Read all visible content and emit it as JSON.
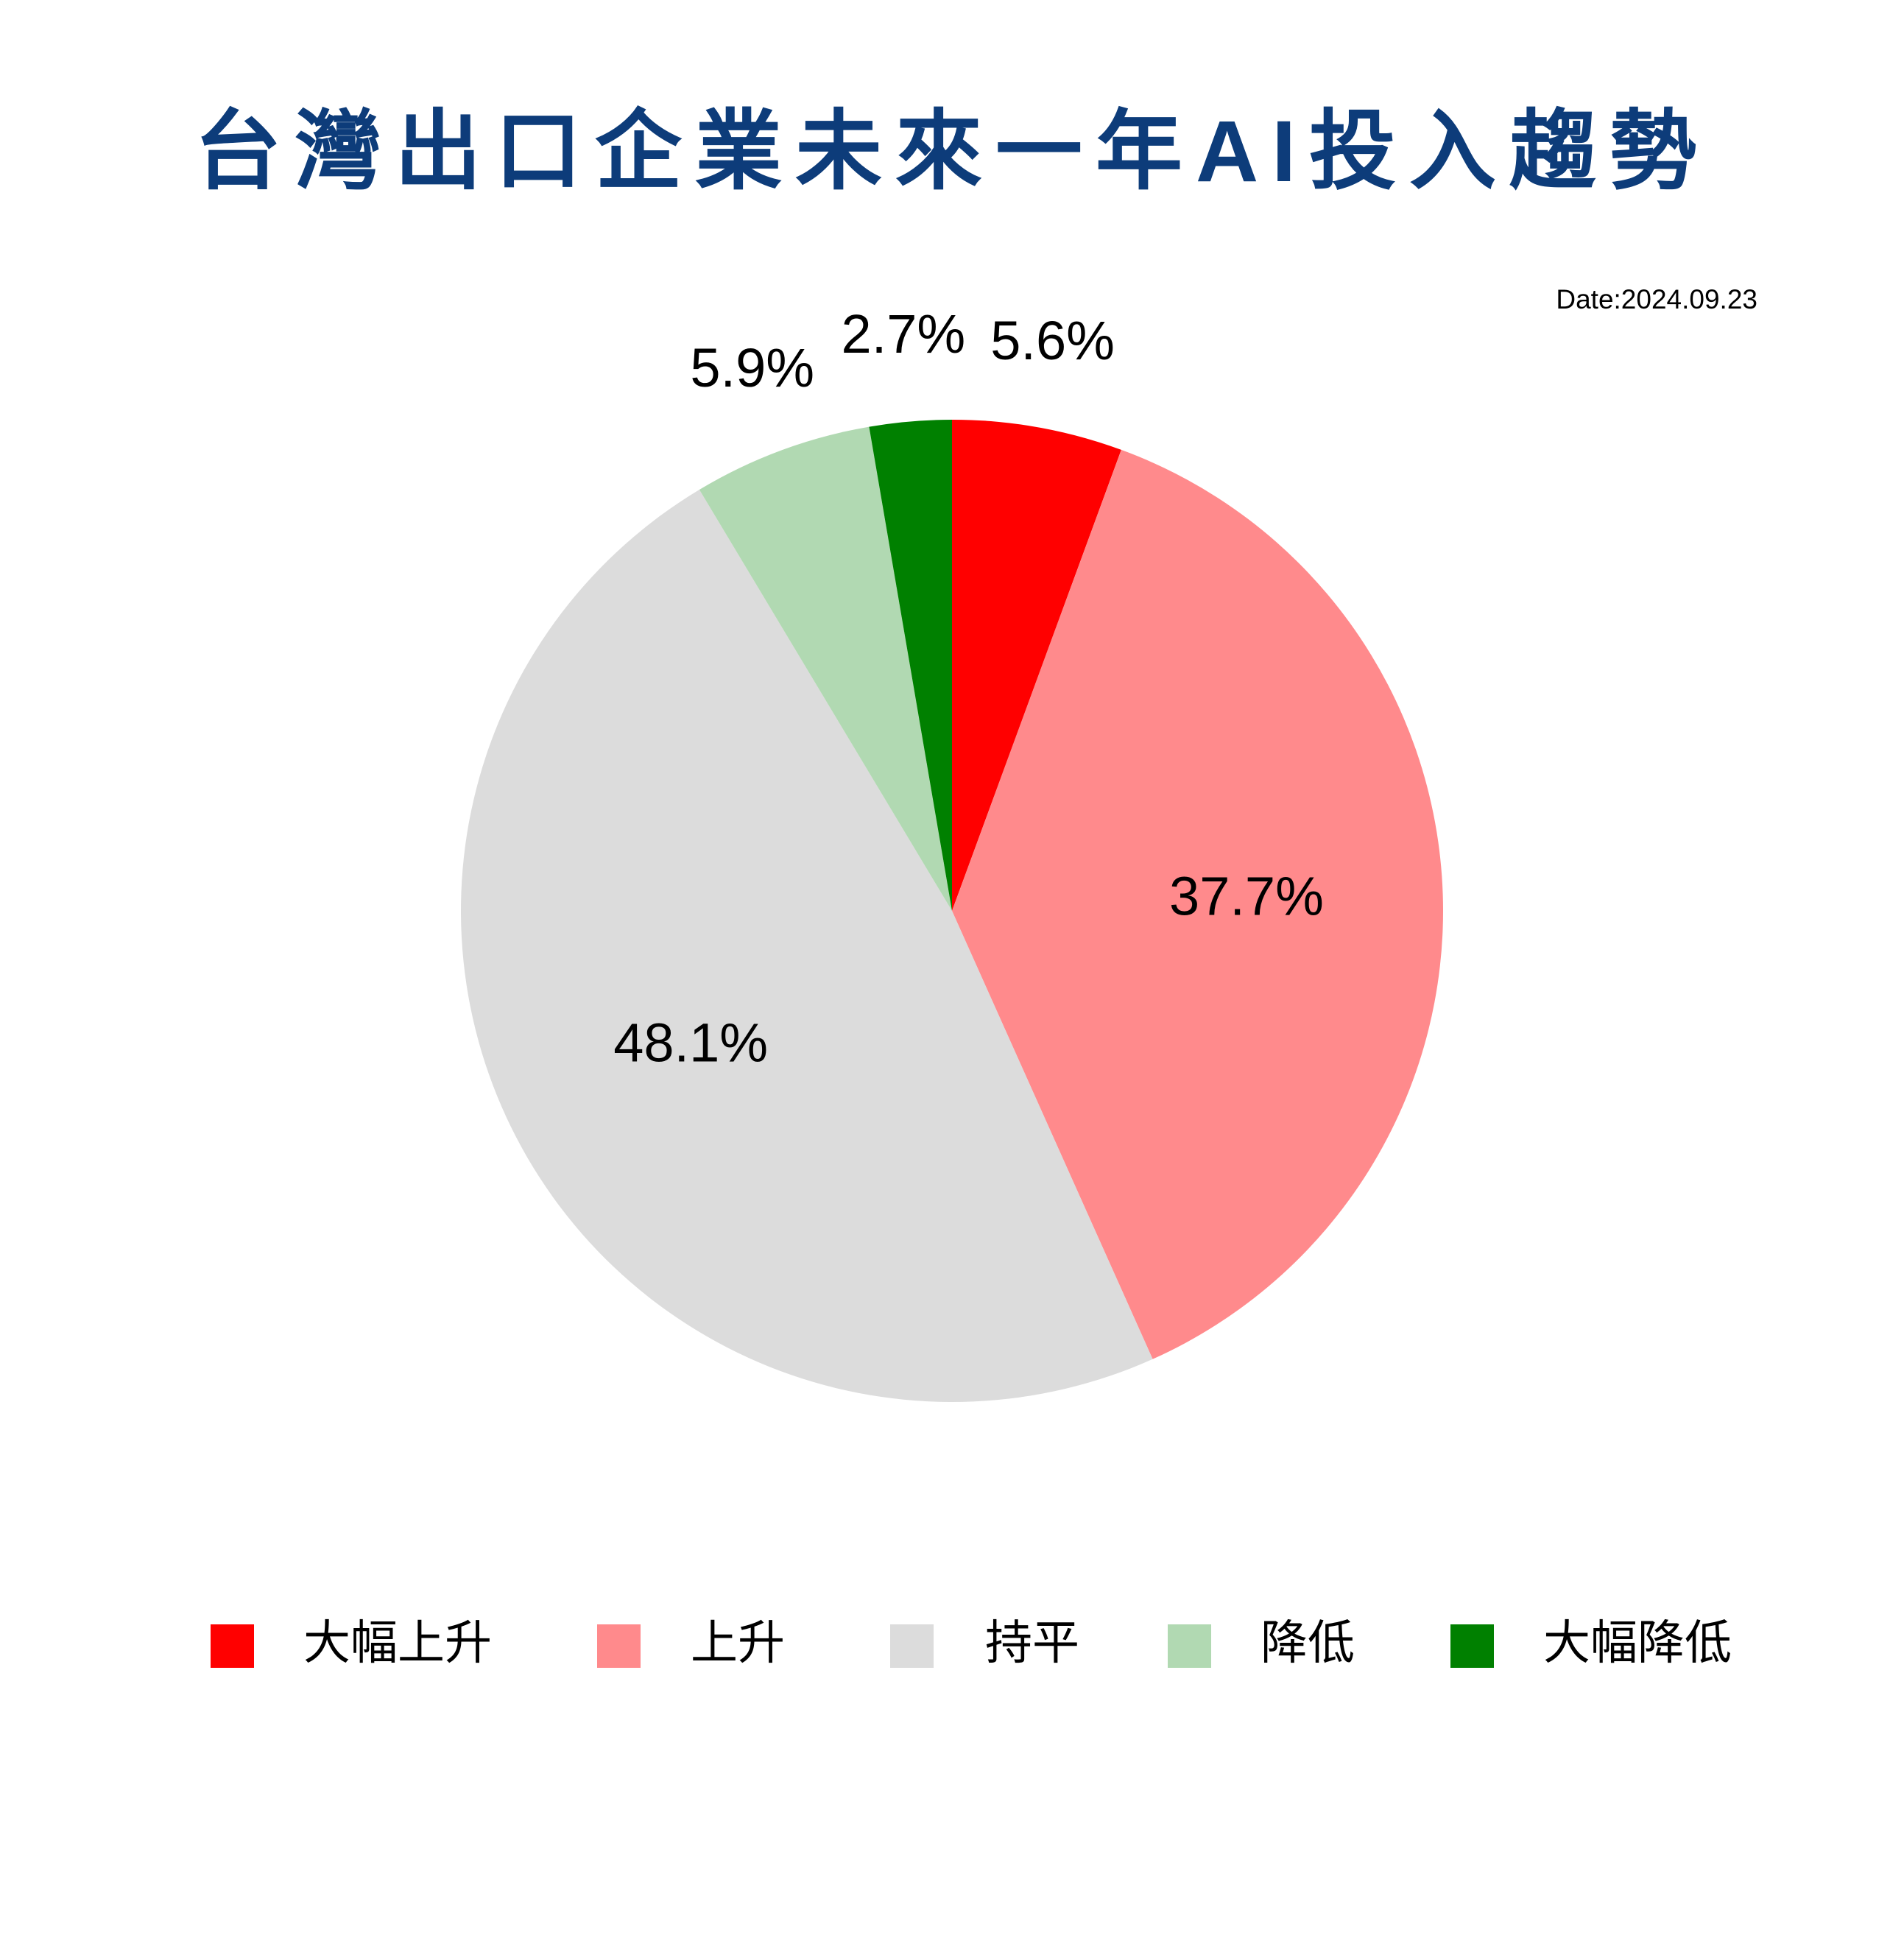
{
  "chart_data": {
    "type": "pie",
    "title": "台灣出口企業未來一年AI投入趨勢",
    "date": "Date:2024.09.23",
    "categories": [
      "大幅上升",
      "上升",
      "持平",
      "降低",
      "大幅降低"
    ],
    "values": [
      5.6,
      37.7,
      48.1,
      5.9,
      2.7
    ],
    "value_labels": [
      "5.6%",
      "37.7%",
      "48.1%",
      "5.9%",
      "2.7%"
    ],
    "colors": [
      "#ff0000",
      "#ff8a8c",
      "#dcdcdc",
      "#b1d9b2",
      "#008000"
    ],
    "legend": "bottom"
  }
}
